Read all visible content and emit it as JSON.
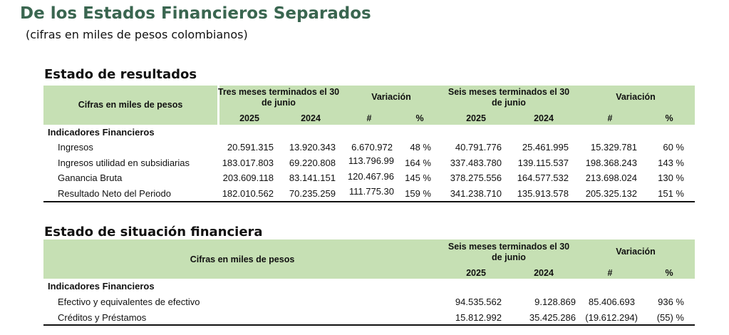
{
  "title": "De los Estados Financieros Separados",
  "subtitle": "(cifras en miles de pesos colombianos)",
  "income_statement": {
    "title": "Estado de resultados",
    "header": {
      "label": "Cifras en miles de pesos",
      "group1": "Tres meses terminados el 30 de junio",
      "variation1": "Variación",
      "group2": "Seis meses terminados el 30 de junio",
      "variation2": "Variación",
      "year_a": "2025",
      "year_b": "2024",
      "hash": "#",
      "pct": "%"
    },
    "section_label": "Indicadores Financieros",
    "rows": [
      {
        "label": "Ingresos",
        "q2025": "20.591.315",
        "q2024": "13.920.343",
        "qvar": "6.670.972",
        "qpct": "48 %",
        "s2025": "40.791.776",
        "s2024": "25.461.995",
        "svar": "15.329.781",
        "spct": "60 %"
      },
      {
        "label": "Ingresos utilidad en subsidiarias",
        "q2025": "183.017.803",
        "q2024": "69.220.808",
        "qvar": "113.796.99",
        "qpct": "164 %",
        "s2025": "337.483.780",
        "s2024": "139.115.537",
        "svar": "198.368.243",
        "spct": "143 %"
      },
      {
        "label": "Ganancia Bruta",
        "q2025": "203.609.118",
        "q2024": "83.141.151",
        "qvar": "120.467.96",
        "qpct": "145 %",
        "s2025": "378.275.556",
        "s2024": "164.577.532",
        "svar": "213.698.024",
        "spct": "130 %"
      },
      {
        "label": "Resultado Neto del Periodo",
        "q2025": "182.010.562",
        "q2024": "70.235.259",
        "qvar": "111.775.30",
        "qpct": "159 %",
        "s2025": "341.238.710",
        "s2024": "135.913.578",
        "svar": "205.325.132",
        "spct": "151 %"
      }
    ]
  },
  "balance_sheet": {
    "title": "Estado de situación financiera",
    "header": {
      "label": "Cifras en miles de pesos",
      "group": "Seis meses terminados el 30 de junio",
      "variation": "Variación",
      "year_a": "2025",
      "year_b": "2024",
      "hash": "#",
      "pct": "%"
    },
    "section_label": "Indicadores Financieros",
    "rows": [
      {
        "label": "Efectivo y equivalentes de efectivo",
        "v2025": "94.535.562",
        "v2024": "9.128.869",
        "var": "85.406.693",
        "pct": "936 %"
      },
      {
        "label": "Créditos y Préstamos",
        "v2025": "15.812.992",
        "v2024": "35.425.286",
        "var": "(19.612.294)",
        "pct": "(55) %"
      }
    ]
  }
}
